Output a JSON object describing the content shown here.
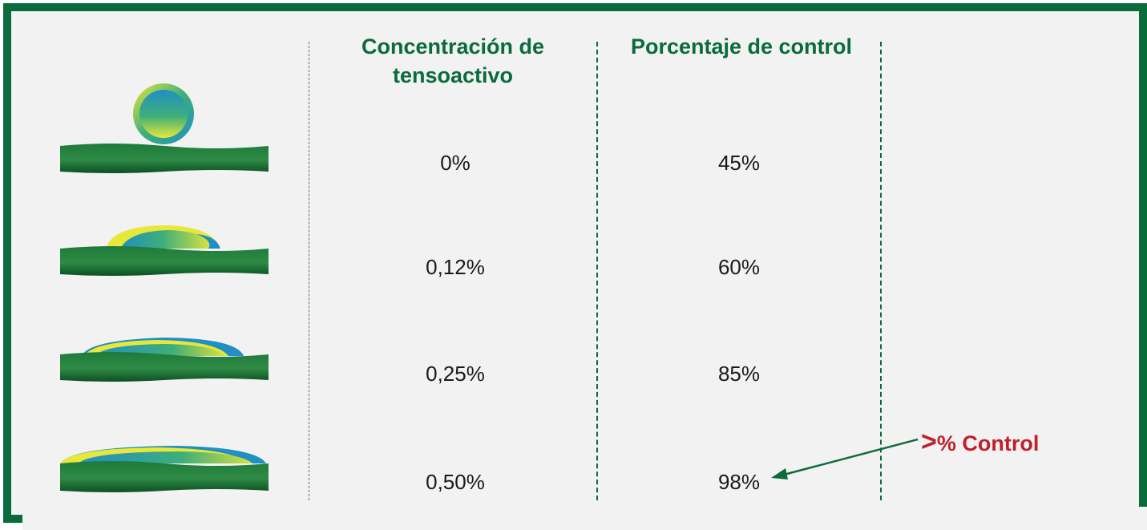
{
  "headers": {
    "concentration_line1": "Concentración de",
    "concentration_line2": "tensoactivo",
    "control": "Porcentaje de control"
  },
  "rows": [
    {
      "concentration": "0%",
      "control": "45%"
    },
    {
      "concentration": "0,12%",
      "control": "60%"
    },
    {
      "concentration": "0,25%",
      "control": "85%"
    },
    {
      "concentration": "0,50%",
      "control": "98%"
    }
  ],
  "annotation": {
    "symbol": ">",
    "text": "% Control"
  },
  "colors": {
    "brand_green": "#0a6b3b",
    "annotation_red": "#c0202b",
    "drop_blue": "#1f8fc4",
    "drop_yellow": "#e8e83a"
  },
  "icons": [
    "spherical-droplet-icon",
    "flattened-droplet-icon",
    "spreading-droplet-icon",
    "fully-spread-droplet-icon",
    "leaf-surface-icon"
  ]
}
